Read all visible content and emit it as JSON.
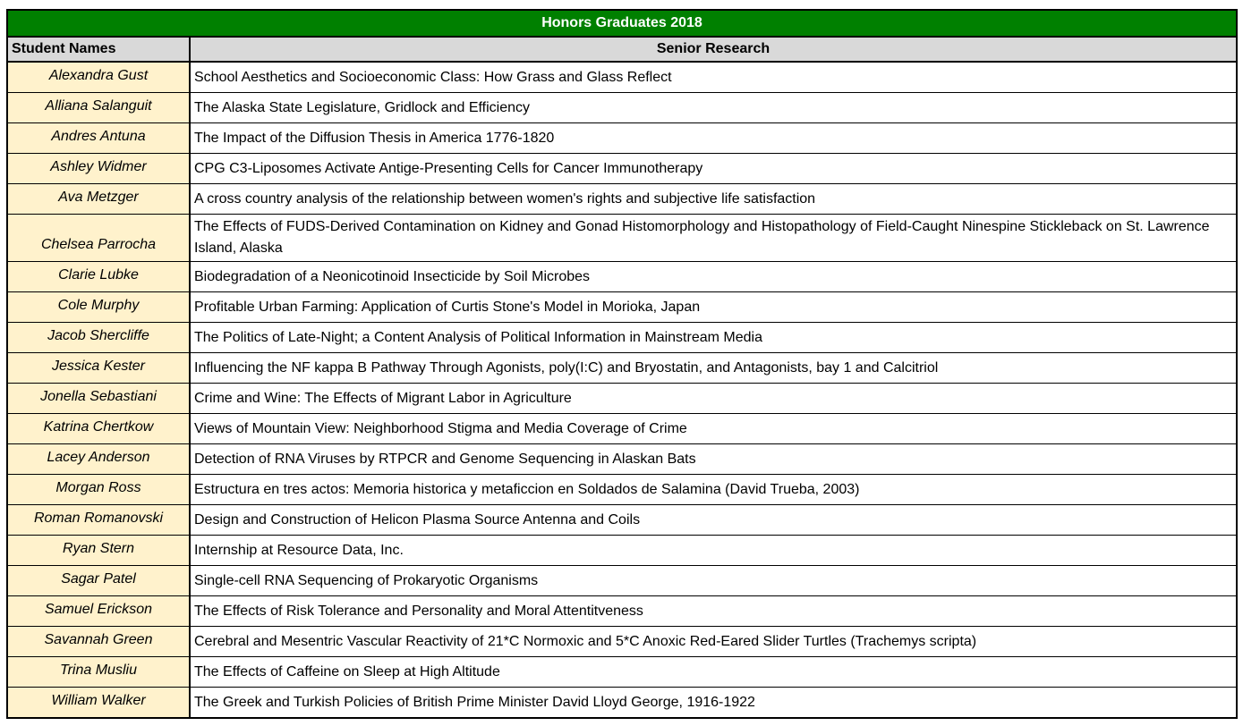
{
  "table": {
    "title": "Honors Graduates 2018",
    "columns": {
      "student": "Student Names",
      "research": "Senior Research"
    },
    "rows": [
      {
        "name": "Alexandra Gust",
        "research": "School Aesthetics and Socioeconomic Class: How Grass and Glass Reflect"
      },
      {
        "name": "Alliana Salanguit",
        "research": "The Alaska State Legislature, Gridlock and Efficiency"
      },
      {
        "name": "Andres Antuna",
        "research": "The Impact of the Diffusion Thesis in America 1776-1820"
      },
      {
        "name": "Ashley Widmer",
        "research": "CPG C3-Liposomes Activate Antige-Presenting Cells for Cancer Immunotherapy"
      },
      {
        "name": "Ava Metzger",
        "research": "A cross country analysis of the relationship between women's rights and subjective life satisfaction"
      },
      {
        "name": "Chelsea Parrocha",
        "research": "The Effects of FUDS-Derived Contamination on Kidney and Gonad Histomorphology and Histopathology of Field-Caught Ninespine Stickleback on St. Lawrence Island, Alaska"
      },
      {
        "name": "Clarie Lubke",
        "research": "Biodegradation of a Neonicotinoid Insecticide by Soil Microbes"
      },
      {
        "name": "Cole Murphy",
        "research": "Profitable Urban Farming: Application of Curtis Stone's Model in Morioka, Japan"
      },
      {
        "name": "Jacob Shercliffe",
        "research": "The Politics of Late-Night; a Content Analysis of Political Information in Mainstream Media"
      },
      {
        "name": "Jessica Kester",
        "research": "Influencing the NF kappa B Pathway Through Agonists, poly(I:C) and Bryostatin, and Antagonists, bay 1 and Calcitriol"
      },
      {
        "name": "Jonella Sebastiani",
        "research": "Crime and Wine: The Effects of Migrant Labor in Agriculture"
      },
      {
        "name": "Katrina Chertkow",
        "research": "Views of Mountain View: Neighborhood Stigma and Media Coverage of Crime"
      },
      {
        "name": "Lacey Anderson",
        "research": "Detection of RNA Viruses by RTPCR and Genome Sequencing in Alaskan Bats"
      },
      {
        "name": "Morgan Ross",
        "research": "Estructura en tres actos: Memoria historica y metaficcion en Soldados de Salamina (David Trueba, 2003)"
      },
      {
        "name": "Roman Romanovski",
        "research": "Design and Construction of Helicon Plasma Source Antenna and Coils"
      },
      {
        "name": "Ryan Stern",
        "research": "Internship at Resource Data, Inc."
      },
      {
        "name": "Sagar Patel",
        "research": "Single-cell RNA Sequencing of Prokaryotic Organisms"
      },
      {
        "name": "Samuel Erickson",
        "research": "The Effects of Risk Tolerance and Personality and Moral Attentitveness"
      },
      {
        "name": "Savannah Green",
        "research": "Cerebral and Mesentric Vascular Reactivity of 21*C Normoxic and 5*C Anoxic Red-Eared Slider Turtles (Trachemys scripta)"
      },
      {
        "name": "Trina Musliu",
        "research": "The Effects of Caffeine on Sleep at High Altitude"
      },
      {
        "name": "William Walker",
        "research": "The Greek and Turkish Policies of British Prime Minister David Lloyd George, 1916-1922"
      }
    ]
  },
  "colors": {
    "title_bg": "#008000",
    "title_text": "#FFFFFF",
    "header_bg": "#D9D9D9",
    "name_bg": "#FFF2CC",
    "border": "#000000"
  }
}
